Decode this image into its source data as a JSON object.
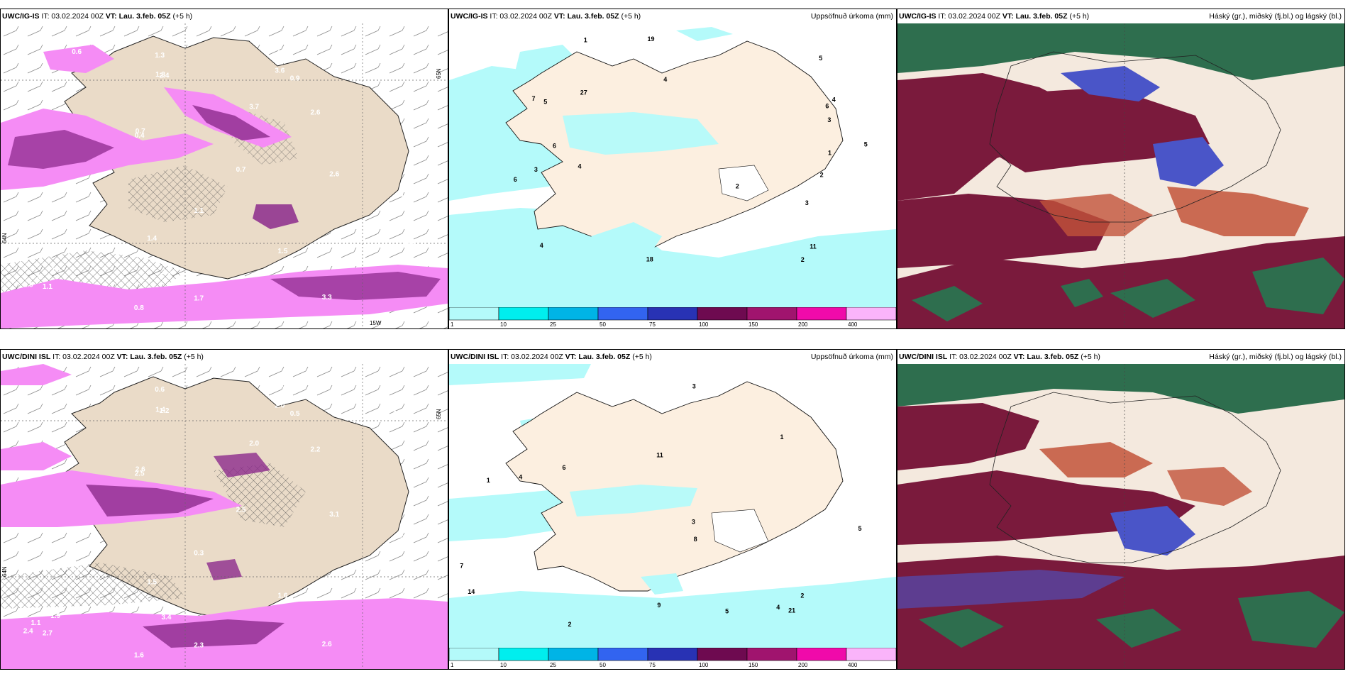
{
  "rows": [
    {
      "model": "UWC/IG-IS",
      "init": "IT: 03.02.2024 00Z",
      "valid_label": "VT:",
      "valid_value": "Lau. 3.feb. 05Z",
      "lead": "(+5 h)"
    },
    {
      "model": "UWC/DINI ISL",
      "init": "IT: 03.02.2024 00Z",
      "valid_label": "VT:",
      "valid_value": "Lau. 3.feb. 05Z",
      "lead": "(+5 h)"
    }
  ],
  "panel_titles": {
    "precip": "Uppsöfnuð úrkoma (mm)",
    "clouds": "Háský (gr.), miðský (fj.bl.) og lágský (bl.)"
  },
  "grid_labels": {
    "lat_65": "65N",
    "lat_64": "64N",
    "lon_15": "15W"
  },
  "colorbar": {
    "ticks": [
      "1",
      "10",
      "25",
      "50",
      "75",
      "100",
      "150",
      "200",
      "400"
    ],
    "colors": [
      "#b4fafa",
      "#00eeee",
      "#00b4e6",
      "#3264f0",
      "#2832b4",
      "#6e0a50",
      "#a0146e",
      "#f00aaa",
      "#fab4fa"
    ]
  },
  "colors": {
    "land_wind": "#eadbc8",
    "land_precip": "#fcefe0",
    "magenta_light": "#f58cf5",
    "magenta_dark": "#8c2a8c",
    "cyan_light": "#b4fafa",
    "cloud_high": "#2e6e4e",
    "cloud_mid": "#7a1a3c",
    "cloud_low": "#4a55c8",
    "cloud_rust": "#c2533a"
  },
  "wind_panel_values": {
    "top": [
      "3.6",
      "0.7",
      "0.9",
      "1.3",
      "0.4",
      "2.0",
      "0.8",
      "1.0",
      "0.6",
      "1.1",
      "1.3",
      "0.7",
      "2.6",
      "1.5",
      "1.0",
      "1.7",
      "0.4",
      "0.8",
      "1.1",
      "1.7",
      "1.4",
      "2.9",
      "0.4",
      "3.7",
      "3.3",
      "2.0",
      "2.3",
      "2.6",
      "2.4",
      "2.8",
      "1.3"
    ],
    "bottom": [
      "2.0",
      "2.6",
      "0.5",
      "0.6",
      "0.4",
      "2.3",
      "1.1",
      "0.9",
      "2.6",
      "2.7",
      "1.3",
      "2.5",
      "3.1",
      "1.6",
      "1.5",
      "2.3",
      "0.6",
      "1.6",
      "0.3",
      "1.2",
      "1.5",
      "1.9",
      "2.5",
      "2.0",
      "2.6",
      "3.8",
      "3.4",
      "2.2",
      "1.2",
      "2.4",
      "1.4"
    ]
  },
  "precip_panel_values": {
    "top": [
      "19",
      "18",
      "27",
      "4",
      "3",
      "6",
      "2",
      "5",
      "3",
      "1",
      "3",
      "2",
      "4",
      "6",
      "4",
      "5",
      "1",
      "2",
      "4",
      "5",
      "6",
      "7",
      "11"
    ],
    "bottom": [
      "21",
      "14",
      "3",
      "2",
      "1",
      "5",
      "4",
      "8",
      "6",
      "3",
      "2",
      "1",
      "7",
      "4",
      "9",
      "11",
      "5"
    ]
  }
}
